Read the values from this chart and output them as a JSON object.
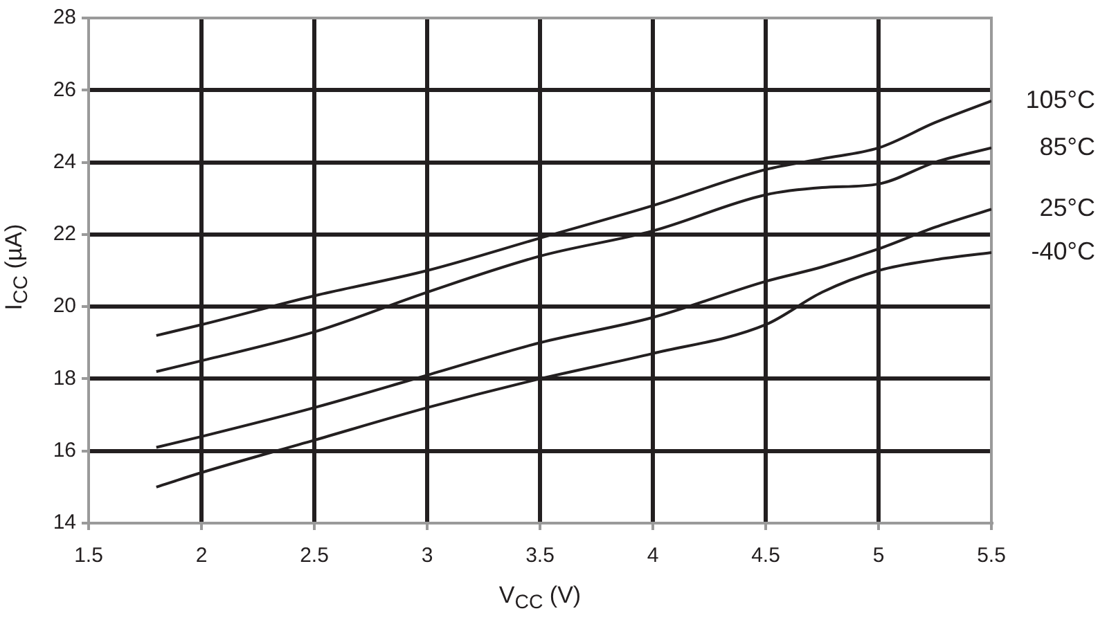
{
  "chart_data": {
    "type": "line",
    "xlabel": "V$_{CC}$ (V)",
    "ylabel": "I$_{CC}$ (µA)",
    "x": [
      1.8,
      2,
      2.5,
      3,
      3.5,
      4,
      4.5,
      4.75,
      5,
      5.25,
      5.5
    ],
    "series": [
      {
        "name": "105°C",
        "color": "#231f20",
        "values": [
          19.2,
          19.5,
          20.3,
          21.0,
          21.9,
          22.8,
          23.8,
          24.1,
          24.4,
          25.1,
          25.7
        ]
      },
      {
        "name": "85°C",
        "color": "#231f20",
        "values": [
          18.2,
          18.5,
          19.3,
          20.4,
          21.4,
          22.1,
          23.1,
          23.3,
          23.4,
          24.0,
          24.4
        ]
      },
      {
        "name": "25°C",
        "color": "#231f20",
        "values": [
          16.1,
          16.4,
          17.2,
          18.1,
          19.0,
          19.7,
          20.7,
          21.1,
          21.6,
          22.2,
          22.7
        ]
      },
      {
        "name": "-40°C",
        "color": "#231f20",
        "values": [
          15.0,
          15.4,
          16.3,
          17.2,
          18.0,
          18.7,
          19.5,
          20.4,
          21.0,
          21.3,
          21.5
        ]
      }
    ],
    "xlim": [
      1.5,
      5.5
    ],
    "xticks": [
      1.5,
      2,
      2.5,
      3,
      3.5,
      4,
      4.5,
      5,
      5.5
    ],
    "ylim": [
      14,
      28
    ],
    "yticks": [
      14,
      16,
      18,
      20,
      22,
      24,
      26,
      28
    ],
    "grid": true,
    "marker": "none"
  }
}
